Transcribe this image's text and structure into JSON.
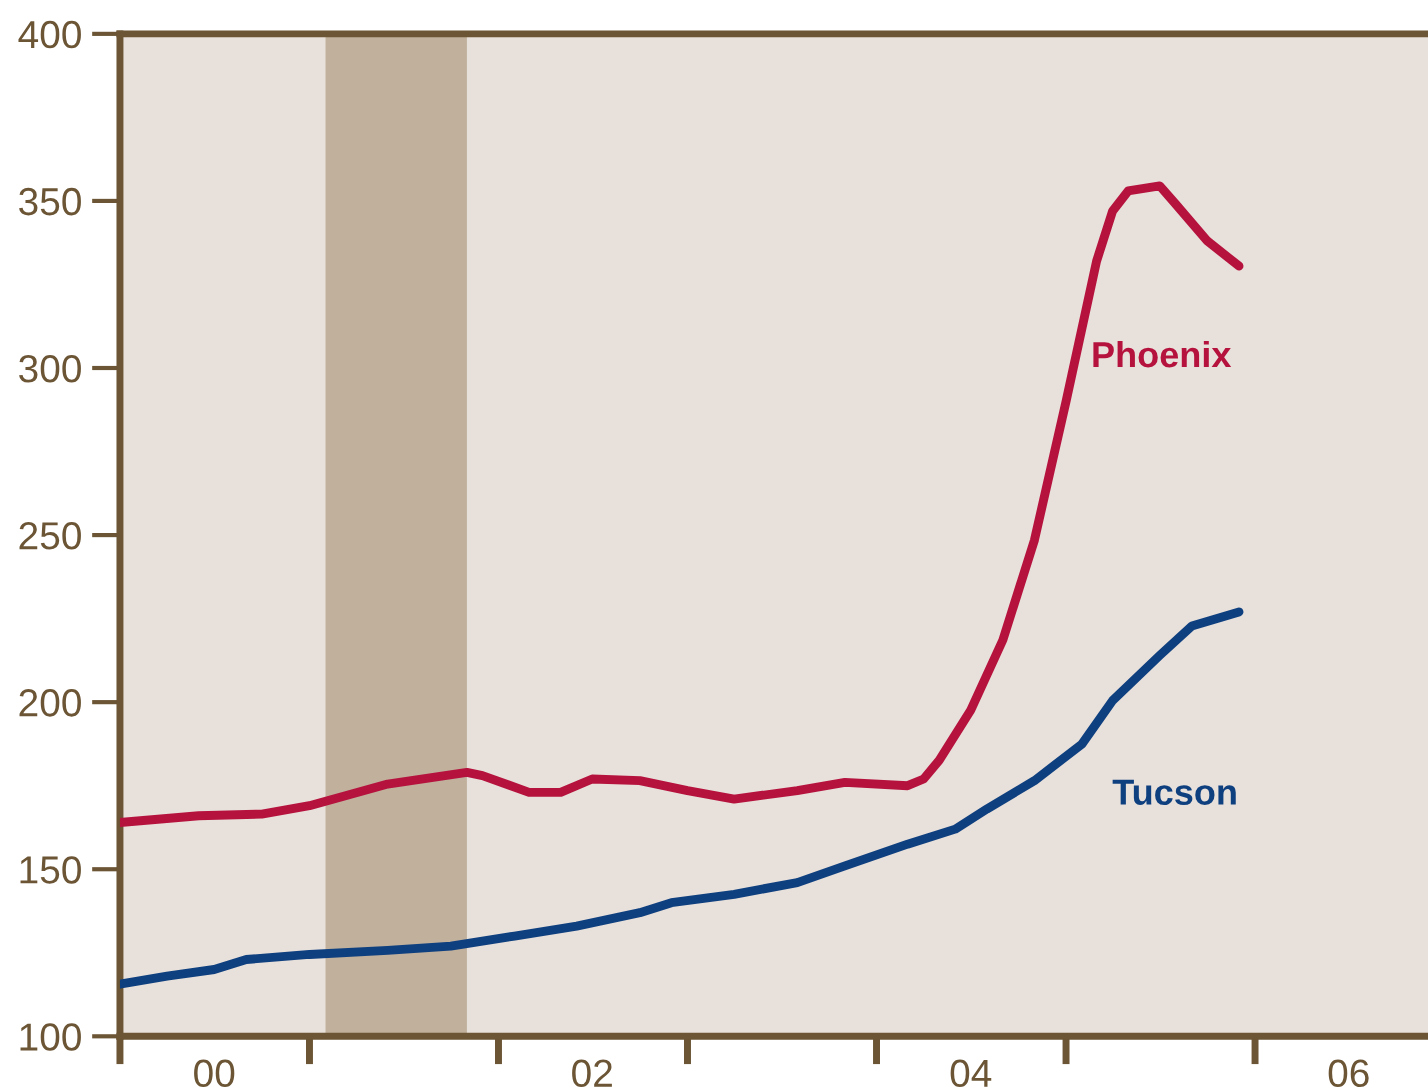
{
  "chart_data": {
    "type": "line",
    "xlim": [
      "2000-01",
      "2006-12"
    ],
    "ylim": [
      100,
      400
    ],
    "yticks": [
      100,
      150,
      200,
      250,
      300,
      350,
      400
    ],
    "xticks": [
      {
        "value": "2000",
        "label": null
      },
      {
        "value": "2001",
        "label": null
      },
      {
        "value": "2002",
        "label": null
      },
      {
        "value": "2003",
        "label": null
      },
      {
        "value": "2004",
        "label": null
      },
      {
        "value": "2005",
        "label": null
      },
      {
        "value": "2006",
        "label": null
      },
      {
        "value": "2000-07",
        "label": "00"
      },
      {
        "value": "2002-07",
        "label": "02"
      },
      {
        "value": "2004-07",
        "label": "04"
      },
      {
        "value": "2006-07",
        "label": "06"
      }
    ],
    "grid": false,
    "legend": false,
    "bands": [
      {
        "axis": "x",
        "from": "2001-02",
        "to": "2001-11",
        "color": "#c0b09c"
      }
    ],
    "series": [
      {
        "name": "Phoenix",
        "color": "#b5123e",
        "x": [
          "2000-01",
          "2000-06",
          "2000-10",
          "2001-01",
          "2001-06",
          "2001-11",
          "2001-12",
          "2002-03",
          "2002-05",
          "2002-07",
          "2002-10",
          "2003-01",
          "2003-04",
          "2003-08",
          "2003-11",
          "2004-03",
          "2004-04",
          "2004-05",
          "2004-07",
          "2004-09",
          "2004-11",
          "2005-01",
          "2005-03",
          "2005-04",
          "2005-05",
          "2005-07",
          "2005-08",
          "2005-10",
          "2005-12"
        ],
        "values": [
          164,
          166,
          166.5,
          169,
          175.5,
          179,
          178,
          173,
          173,
          177,
          176.5,
          173.5,
          171,
          173.5,
          176,
          175,
          177,
          182.6,
          197.6,
          218.6,
          248.5,
          290,
          332,
          347,
          353,
          354.5,
          349,
          338,
          330.5
        ]
      },
      {
        "name": "Tucson",
        "color": "#0e3f7f",
        "x": [
          "2000-01",
          "2000-04",
          "2000-07",
          "2000-09",
          "2001-01",
          "2001-06",
          "2001-10",
          "2002-02",
          "2002-06",
          "2002-10",
          "2002-12",
          "2003-04",
          "2003-08",
          "2003-11",
          "2004-03",
          "2004-06",
          "2004-08",
          "2004-11",
          "2005-02",
          "2005-04",
          "2005-07",
          "2005-09",
          "2005-12"
        ],
        "values": [
          115.6,
          118,
          120,
          123,
          124.5,
          125.7,
          127,
          130,
          133,
          137,
          140,
          142.5,
          146,
          151,
          157.5,
          162,
          168,
          176.5,
          187.5,
          200.5,
          214,
          222.8,
          227
        ]
      }
    ]
  }
}
